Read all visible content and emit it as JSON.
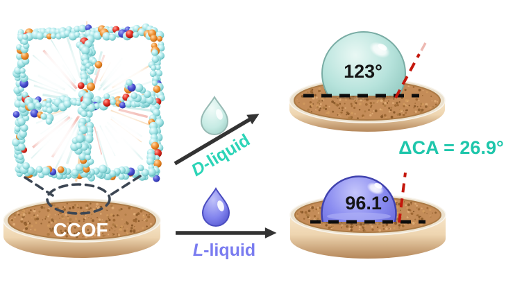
{
  "substrate": {
    "label": "CCOF"
  },
  "liquids": [
    {
      "prefix": "D",
      "suffix": "-liquid",
      "color": "#2cd4b7"
    },
    {
      "prefix": "L",
      "suffix": "-liquid",
      "color": "#7a7cf0"
    }
  ],
  "measurements": [
    {
      "liquid": "D-liquid",
      "contact_angle": "123°"
    },
    {
      "liquid": "L-liquid",
      "contact_angle": "96.1°"
    }
  ],
  "delta": {
    "label": "ΔCA = 26.9°",
    "color": "#1ec6ab"
  },
  "icons": {
    "d_liquid": "droplet-icon-teal",
    "l_liquid": "droplet-icon-purple",
    "molecule": "ccof-framework-structure"
  },
  "colors": {
    "angle_text": "#141414",
    "arrow": "#333333",
    "baseline_dash": "#0d0d0d",
    "tangent_dash": "#c4170c",
    "zoom_dash": "#3c4653",
    "cork_top": "#c48c58",
    "disk_side": "#e9cba4",
    "d_droplet_fill": "#b7e3dc",
    "l_droplet_fill": "#8a8cf0",
    "ccof_label_color": "#ffffff"
  }
}
